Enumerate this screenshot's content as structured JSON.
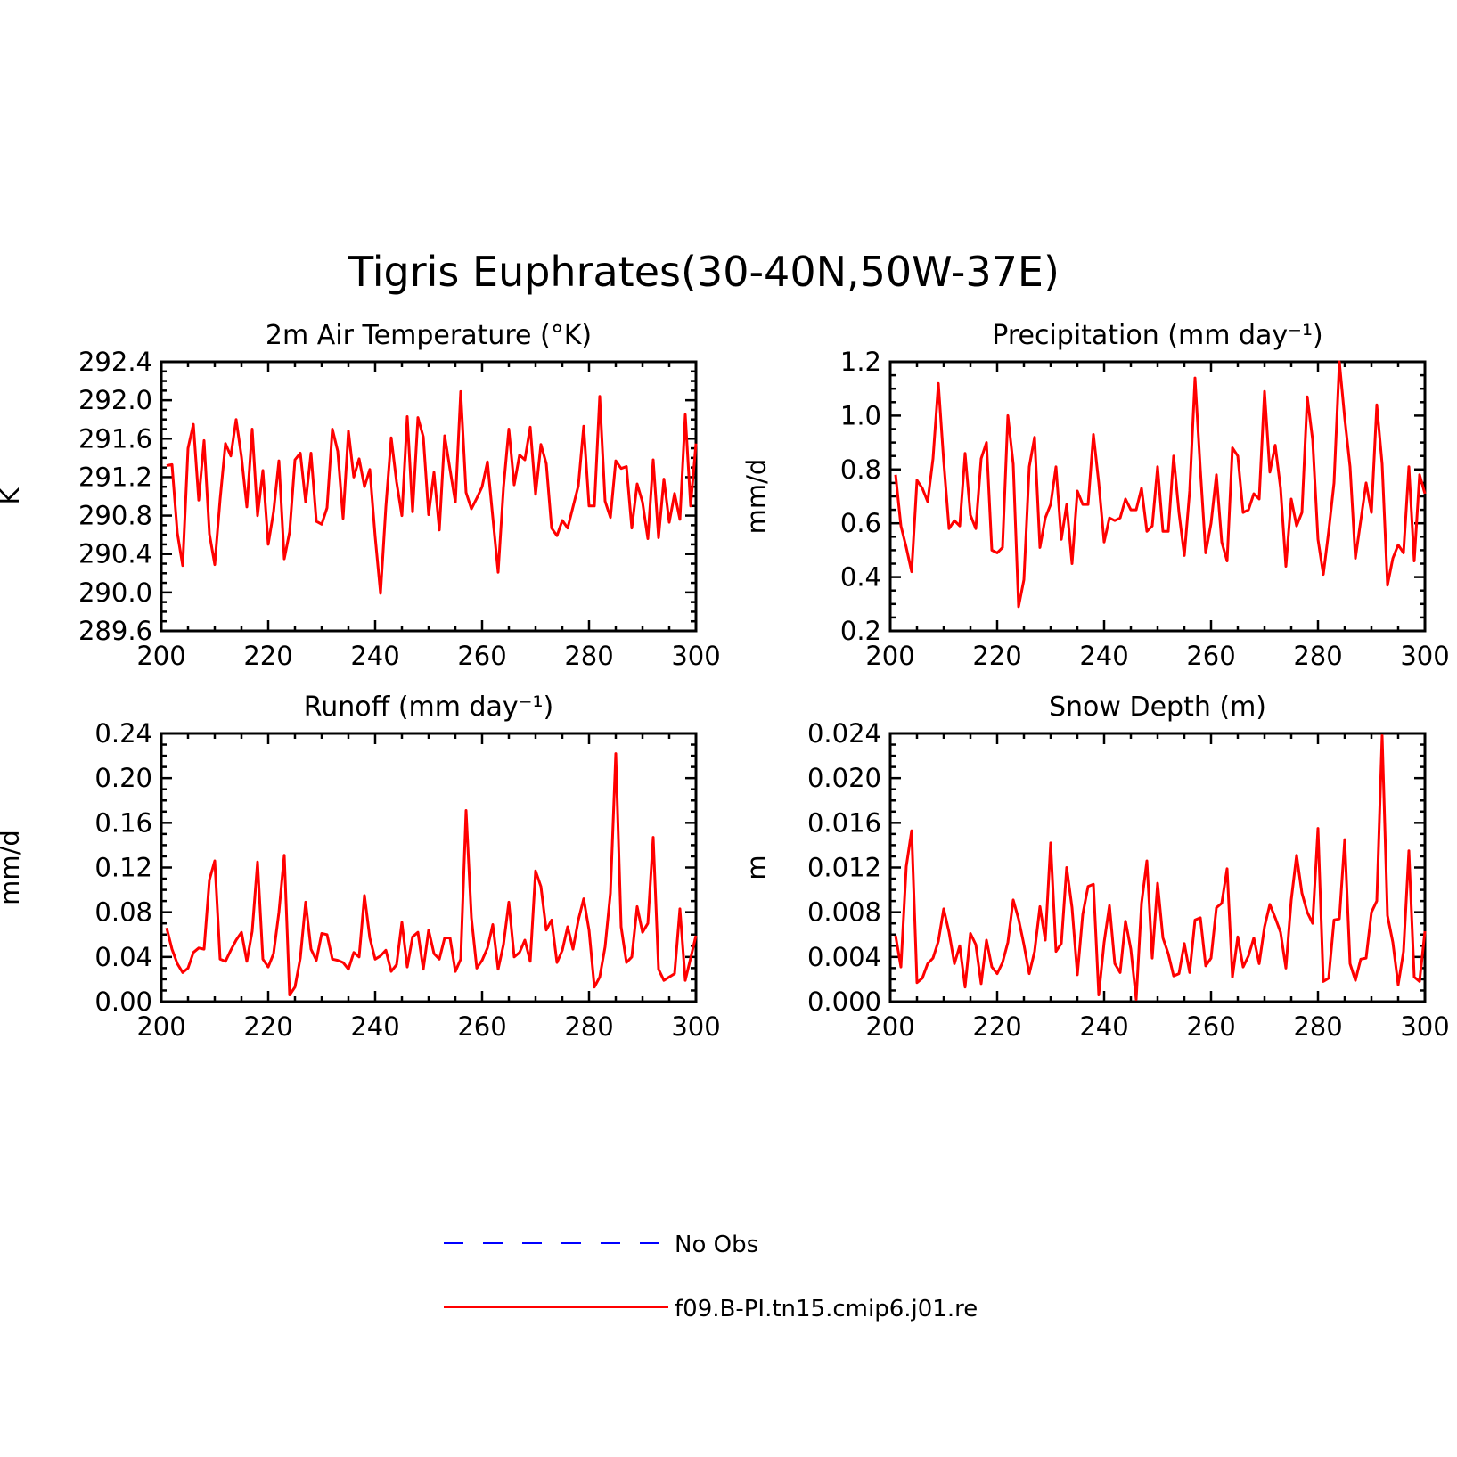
{
  "title": "Tigris Euphrates(30-40N,50W-37E)",
  "legend": [
    {
      "label": "No Obs",
      "color": "#0000ff",
      "style": "dashed"
    },
    {
      "label": "f09.B-PI.tn15.cmip6.j01.re",
      "color": "#ff0000",
      "style": "solid"
    }
  ],
  "chart_data": [
    {
      "type": "line",
      "title": "2m Air Temperature (°K)",
      "xlabel": "",
      "ylabel": "K",
      "xlim": [
        200,
        300
      ],
      "ylim": [
        289.6,
        292.4
      ],
      "xticks": [
        200,
        220,
        240,
        260,
        280,
        300
      ],
      "yticks": [
        "289.6",
        "290.0",
        "290.4",
        "290.8",
        "291.2",
        "291.6",
        "292.0",
        "292.4"
      ],
      "x": [
        201,
        202,
        203,
        204,
        205,
        206,
        207,
        208,
        209,
        210,
        211,
        212,
        213,
        214,
        215,
        216,
        217,
        218,
        219,
        220,
        221,
        222,
        223,
        224,
        225,
        226,
        227,
        228,
        229,
        230,
        231,
        232,
        233,
        234,
        235,
        236,
        237,
        238,
        239,
        240,
        241,
        242,
        243,
        244,
        245,
        246,
        247,
        248,
        249,
        250,
        251,
        252,
        253,
        254,
        255,
        256,
        257,
        258,
        259,
        260,
        261,
        262,
        263,
        264,
        265,
        266,
        267,
        268,
        269,
        270,
        271,
        272,
        273,
        274,
        275,
        276,
        277,
        278,
        279,
        280,
        281,
        282,
        283,
        284,
        285,
        286,
        287,
        288,
        289,
        290,
        291,
        292,
        293,
        294,
        295,
        296,
        297,
        298,
        299,
        300
      ],
      "series": [
        {
          "name": "f09.B-PI.tn15.cmip6.j01.re",
          "color": "#ff0000",
          "values": [
            291.32,
            291.33,
            290.62,
            290.28,
            291.5,
            291.75,
            290.96,
            291.58,
            290.61,
            290.29,
            290.97,
            291.55,
            291.42,
            291.8,
            291.41,
            290.89,
            291.7,
            290.8,
            291.27,
            290.5,
            290.84,
            291.37,
            290.35,
            290.63,
            291.38,
            291.45,
            290.94,
            291.45,
            290.74,
            290.71,
            290.88,
            291.7,
            291.47,
            290.77,
            291.68,
            291.2,
            291.39,
            291.1,
            291.28,
            290.58,
            289.99,
            290.89,
            291.61,
            291.15,
            290.8,
            291.83,
            290.84,
            291.82,
            291.62,
            290.81,
            291.25,
            290.65,
            291.63,
            291.28,
            290.94,
            292.09,
            291.04,
            290.87,
            290.98,
            291.1,
            291.36,
            290.78,
            290.21,
            291.09,
            291.7,
            291.12,
            291.43,
            291.38,
            291.72,
            291.02,
            291.54,
            291.34,
            290.67,
            290.59,
            290.75,
            290.67,
            290.89,
            291.11,
            291.73,
            290.9,
            290.9,
            292.04,
            290.95,
            290.78,
            291.37,
            291.29,
            291.31,
            290.67,
            291.13,
            290.94,
            290.56,
            291.38,
            290.57,
            291.18,
            290.73,
            291.03,
            290.76,
            291.85,
            290.9,
            291.55
          ]
        }
      ]
    },
    {
      "type": "line",
      "title": "Precipitation (mm day⁻¹)",
      "xlabel": "",
      "ylabel": "mm/d",
      "xlim": [
        200,
        300
      ],
      "ylim": [
        0.2,
        1.2
      ],
      "xticks": [
        200,
        220,
        240,
        260,
        280,
        300
      ],
      "yticks": [
        "0.2",
        "0.4",
        "0.6",
        "0.8",
        "1.0",
        "1.2"
      ],
      "x": [
        201,
        202,
        203,
        204,
        205,
        206,
        207,
        208,
        209,
        210,
        211,
        212,
        213,
        214,
        215,
        216,
        217,
        218,
        219,
        220,
        221,
        222,
        223,
        224,
        225,
        226,
        227,
        228,
        229,
        230,
        231,
        232,
        233,
        234,
        235,
        236,
        237,
        238,
        239,
        240,
        241,
        242,
        243,
        244,
        245,
        246,
        247,
        248,
        249,
        250,
        251,
        252,
        253,
        254,
        255,
        256,
        257,
        258,
        259,
        260,
        261,
        262,
        263,
        264,
        265,
        266,
        267,
        268,
        269,
        270,
        271,
        272,
        273,
        274,
        275,
        276,
        277,
        278,
        279,
        280,
        281,
        282,
        283,
        284,
        285,
        286,
        287,
        288,
        289,
        290,
        291,
        292,
        293,
        294,
        295,
        296,
        297,
        298,
        299,
        300
      ],
      "series": [
        {
          "name": "f09.B-PI.tn15.cmip6.j01.re",
          "color": "#ff0000",
          "values": [
            0.78,
            0.59,
            0.51,
            0.42,
            0.76,
            0.73,
            0.68,
            0.84,
            1.12,
            0.83,
            0.58,
            0.61,
            0.59,
            0.86,
            0.63,
            0.58,
            0.84,
            0.9,
            0.5,
            0.49,
            0.51,
            1.0,
            0.82,
            0.29,
            0.39,
            0.81,
            0.92,
            0.51,
            0.62,
            0.67,
            0.81,
            0.54,
            0.67,
            0.45,
            0.72,
            0.67,
            0.67,
            0.93,
            0.75,
            0.53,
            0.62,
            0.61,
            0.62,
            0.69,
            0.65,
            0.65,
            0.73,
            0.57,
            0.59,
            0.81,
            0.57,
            0.57,
            0.85,
            0.64,
            0.48,
            0.72,
            1.14,
            0.8,
            0.49,
            0.6,
            0.78,
            0.53,
            0.46,
            0.88,
            0.85,
            0.64,
            0.65,
            0.71,
            0.69,
            1.09,
            0.79,
            0.89,
            0.73,
            0.44,
            0.69,
            0.59,
            0.64,
            1.07,
            0.91,
            0.54,
            0.41,
            0.57,
            0.75,
            1.2,
            0.99,
            0.81,
            0.47,
            0.61,
            0.75,
            0.64,
            1.04,
            0.82,
            0.37,
            0.47,
            0.52,
            0.49,
            0.81,
            0.46,
            0.78,
            0.71
          ]
        }
      ]
    },
    {
      "type": "line",
      "title": "Runoff (mm day⁻¹)",
      "xlabel": "",
      "ylabel": "mm/d",
      "xlim": [
        200,
        300
      ],
      "ylim": [
        0.0,
        0.24
      ],
      "xticks": [
        200,
        220,
        240,
        260,
        280,
        300
      ],
      "yticks": [
        "0.00",
        "0.04",
        "0.08",
        "0.12",
        "0.16",
        "0.20",
        "0.24"
      ],
      "x": [
        201,
        202,
        203,
        204,
        205,
        206,
        207,
        208,
        209,
        210,
        211,
        212,
        213,
        214,
        215,
        216,
        217,
        218,
        219,
        220,
        221,
        222,
        223,
        224,
        225,
        226,
        227,
        228,
        229,
        230,
        231,
        232,
        233,
        234,
        235,
        236,
        237,
        238,
        239,
        240,
        241,
        242,
        243,
        244,
        245,
        246,
        247,
        248,
        249,
        250,
        251,
        252,
        253,
        254,
        255,
        256,
        257,
        258,
        259,
        260,
        261,
        262,
        263,
        264,
        265,
        266,
        267,
        268,
        269,
        270,
        271,
        272,
        273,
        274,
        275,
        276,
        277,
        278,
        279,
        280,
        281,
        282,
        283,
        284,
        285,
        286,
        287,
        288,
        289,
        290,
        291,
        292,
        293,
        294,
        295,
        296,
        297,
        298,
        299,
        300
      ],
      "series": [
        {
          "name": "f09.B-PI.tn15.cmip6.j01.re",
          "color": "#ff0000",
          "values": [
            0.066,
            0.047,
            0.034,
            0.026,
            0.03,
            0.044,
            0.048,
            0.047,
            0.109,
            0.126,
            0.038,
            0.036,
            0.046,
            0.055,
            0.062,
            0.036,
            0.063,
            0.125,
            0.038,
            0.031,
            0.043,
            0.08,
            0.131,
            0.006,
            0.013,
            0.039,
            0.089,
            0.047,
            0.037,
            0.061,
            0.06,
            0.038,
            0.037,
            0.035,
            0.029,
            0.044,
            0.04,
            0.095,
            0.057,
            0.038,
            0.041,
            0.046,
            0.027,
            0.033,
            0.071,
            0.031,
            0.058,
            0.062,
            0.029,
            0.064,
            0.043,
            0.038,
            0.057,
            0.057,
            0.027,
            0.038,
            0.171,
            0.075,
            0.03,
            0.037,
            0.048,
            0.069,
            0.029,
            0.051,
            0.089,
            0.04,
            0.044,
            0.055,
            0.036,
            0.117,
            0.103,
            0.064,
            0.073,
            0.035,
            0.046,
            0.067,
            0.047,
            0.073,
            0.092,
            0.064,
            0.013,
            0.022,
            0.049,
            0.097,
            0.222,
            0.067,
            0.035,
            0.04,
            0.085,
            0.062,
            0.07,
            0.147,
            0.029,
            0.019,
            0.022,
            0.025,
            0.083,
            0.019,
            0.039,
            0.059
          ]
        }
      ]
    },
    {
      "type": "line",
      "title": "Snow Depth (m)",
      "xlabel": "",
      "ylabel": "m",
      "xlim": [
        200,
        300
      ],
      "ylim": [
        0.0,
        0.024
      ],
      "xticks": [
        200,
        220,
        240,
        260,
        280,
        300
      ],
      "yticks": [
        "0.000",
        "0.004",
        "0.008",
        "0.012",
        "0.016",
        "0.020",
        "0.024"
      ],
      "x": [
        201,
        202,
        203,
        204,
        205,
        206,
        207,
        208,
        209,
        210,
        211,
        212,
        213,
        214,
        215,
        216,
        217,
        218,
        219,
        220,
        221,
        222,
        223,
        224,
        225,
        226,
        227,
        228,
        229,
        230,
        231,
        232,
        233,
        234,
        235,
        236,
        237,
        238,
        239,
        240,
        241,
        242,
        243,
        244,
        245,
        246,
        247,
        248,
        249,
        250,
        251,
        252,
        253,
        254,
        255,
        256,
        257,
        258,
        259,
        260,
        261,
        262,
        263,
        264,
        265,
        266,
        267,
        268,
        269,
        270,
        271,
        272,
        273,
        274,
        275,
        276,
        277,
        278,
        279,
        280,
        281,
        282,
        283,
        284,
        285,
        286,
        287,
        288,
        289,
        290,
        291,
        292,
        293,
        294,
        295,
        296,
        297,
        298,
        299,
        300
      ],
      "series": [
        {
          "name": "f09.B-PI.tn15.cmip6.j01.re",
          "color": "#ff0000",
          "values": [
            0.0059,
            0.0031,
            0.0121,
            0.0153,
            0.0017,
            0.0021,
            0.0034,
            0.0039,
            0.0054,
            0.0083,
            0.0062,
            0.0034,
            0.005,
            0.0013,
            0.0061,
            0.0051,
            0.0016,
            0.0055,
            0.0031,
            0.0025,
            0.0035,
            0.0053,
            0.0091,
            0.0074,
            0.0051,
            0.0025,
            0.0045,
            0.0085,
            0.0055,
            0.0142,
            0.0045,
            0.0052,
            0.012,
            0.0084,
            0.0024,
            0.0078,
            0.0103,
            0.0105,
            0.0006,
            0.0053,
            0.0086,
            0.0034,
            0.0026,
            0.0072,
            0.0047,
            0.0002,
            0.0088,
            0.0126,
            0.0039,
            0.0106,
            0.0057,
            0.0043,
            0.0023,
            0.0025,
            0.0052,
            0.0026,
            0.0073,
            0.0075,
            0.0032,
            0.0039,
            0.0084,
            0.0088,
            0.0119,
            0.0022,
            0.0058,
            0.0031,
            0.0041,
            0.0057,
            0.0034,
            0.0067,
            0.0087,
            0.0075,
            0.0062,
            0.003,
            0.0091,
            0.0131,
            0.0097,
            0.008,
            0.007,
            0.0155,
            0.0018,
            0.0021,
            0.0073,
            0.0074,
            0.0145,
            0.0034,
            0.0019,
            0.0038,
            0.0039,
            0.008,
            0.009,
            0.0238,
            0.0077,
            0.0053,
            0.0015,
            0.0045,
            0.0135,
            0.0022,
            0.0018,
            0.0063
          ]
        }
      ]
    }
  ]
}
